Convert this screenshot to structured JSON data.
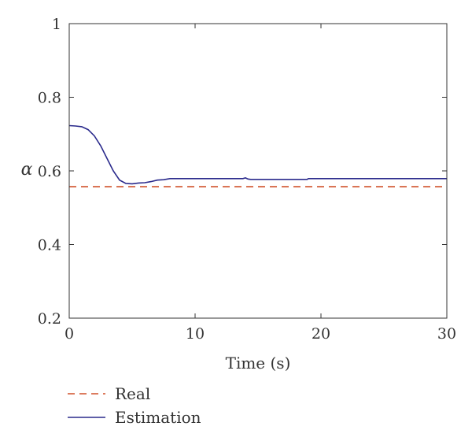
{
  "chart_data": {
    "type": "line",
    "title": "",
    "xlabel": "Time (s)",
    "ylabel": "α",
    "xlim": [
      0,
      30
    ],
    "ylim": [
      0.2,
      1
    ],
    "xticks": [
      0,
      10,
      20,
      30
    ],
    "yticks": [
      0.2,
      0.4,
      0.6,
      0.8,
      1
    ],
    "xtick_labels": [
      "0",
      "10",
      "20",
      "30"
    ],
    "ytick_labels": [
      "0.2",
      "0.4",
      "0.6",
      "0.8",
      "1"
    ],
    "grid": false,
    "legend_position": "bottom-left",
    "series": [
      {
        "name": "Real",
        "style": "dashed",
        "color": "#d0502a",
        "x": [
          0,
          30
        ],
        "y": [
          0.557,
          0.557
        ]
      },
      {
        "name": "Estimation",
        "style": "solid",
        "color": "#2a2a8c",
        "x": [
          0,
          0.5,
          1.0,
          1.5,
          2.0,
          2.5,
          3.0,
          3.5,
          4.0,
          4.5,
          5.0,
          5.5,
          6.0,
          6.5,
          7.0,
          7.5,
          8.0,
          10.0,
          13.8,
          14.0,
          14.2,
          14.4,
          16.0,
          18.9,
          19.0,
          22.0,
          26.0,
          30.0
        ],
        "y": [
          0.723,
          0.722,
          0.72,
          0.712,
          0.695,
          0.668,
          0.634,
          0.6,
          0.575,
          0.566,
          0.565,
          0.567,
          0.568,
          0.571,
          0.575,
          0.576,
          0.579,
          0.579,
          0.579,
          0.581,
          0.578,
          0.577,
          0.577,
          0.577,
          0.579,
          0.579,
          0.579,
          0.579
        ]
      }
    ]
  }
}
